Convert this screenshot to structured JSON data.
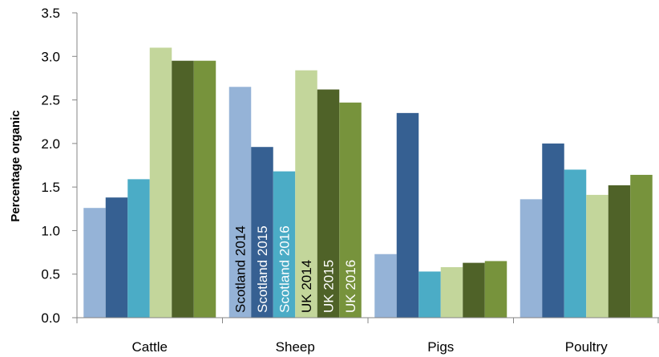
{
  "chart_data": {
    "type": "bar",
    "title": "",
    "xlabel": "",
    "ylabel": "Percentage organic",
    "ylim": [
      0,
      3.5
    ],
    "yticks": [
      "0.0",
      "0.5",
      "1.0",
      "1.5",
      "2.0",
      "2.5",
      "3.0",
      "3.5"
    ],
    "grid": false,
    "legend": "none (series names written inside Sheep bars)",
    "categories": [
      "Cattle",
      "Sheep",
      "Pigs",
      "Poultry"
    ],
    "series": [
      {
        "name": "Scotland 2014",
        "color": "#95b3d7",
        "label_color": "#000000",
        "values": [
          1.26,
          2.65,
          0.73,
          1.36
        ]
      },
      {
        "name": "Scotland 2015",
        "color": "#366092",
        "label_color": "#ffffff",
        "values": [
          1.38,
          1.96,
          2.35,
          2.0
        ]
      },
      {
        "name": "Scotland 2016",
        "color": "#4bacc6",
        "label_color": "#ffffff",
        "values": [
          1.59,
          1.68,
          0.53,
          1.7
        ]
      },
      {
        "name": "UK 2014",
        "color": "#c3d69b",
        "label_color": "#000000",
        "values": [
          3.1,
          2.84,
          0.58,
          1.41
        ]
      },
      {
        "name": "UK 2015",
        "color": "#4f6228",
        "label_color": "#ffffff",
        "values": [
          2.95,
          2.62,
          0.63,
          1.52
        ]
      },
      {
        "name": "UK 2016",
        "color": "#77933c",
        "label_color": "#ffffff",
        "values": [
          2.95,
          2.47,
          0.65,
          1.64
        ]
      }
    ],
    "series_labels_in_category": "Sheep"
  }
}
